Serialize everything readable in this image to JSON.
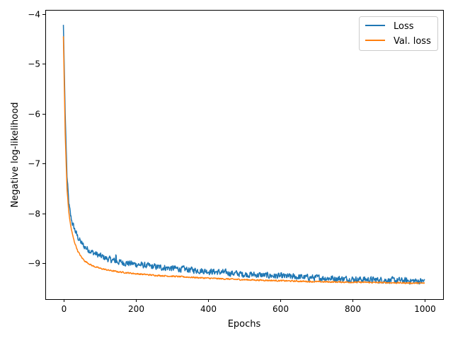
{
  "chart_data": {
    "type": "line",
    "title": "",
    "xlabel": "Epochs",
    "ylabel": "Negative log-likelihood",
    "xlim": [
      -50,
      1050
    ],
    "ylim": [
      -9.72,
      -3.92
    ],
    "xticks": [
      0,
      200,
      400,
      600,
      800,
      1000
    ],
    "xtick_labels": [
      "0",
      "200",
      "400",
      "600",
      "800",
      "1000"
    ],
    "yticks": [
      -4,
      -5,
      -6,
      -7,
      -8,
      -9
    ],
    "ytick_labels": [
      "−4",
      "−5",
      "−6",
      "−7",
      "−8",
      "−9"
    ],
    "grid": false,
    "legend_placement": "top-right",
    "n_epochs": 1000,
    "x": [
      0,
      5,
      10,
      15,
      20,
      25,
      30,
      40,
      50,
      60,
      80,
      100,
      125,
      150,
      200,
      250,
      300,
      400,
      500,
      600,
      700,
      800,
      900,
      990
    ],
    "series": [
      {
        "name": "Loss",
        "color": "#1f77b4",
        "values": [
          -4.22,
          -6.0,
          -7.25,
          -7.8,
          -8.05,
          -8.2,
          -8.3,
          -8.48,
          -8.6,
          -8.68,
          -8.78,
          -8.85,
          -8.92,
          -8.97,
          -9.02,
          -9.07,
          -9.1,
          -9.16,
          -9.22,
          -9.26,
          -9.29,
          -9.32,
          -9.34,
          -9.36
        ],
        "noise": 0.055
      },
      {
        "name": "Val. loss",
        "color": "#ff7f0e",
        "values": [
          -4.45,
          -6.4,
          -7.5,
          -7.98,
          -8.24,
          -8.42,
          -8.56,
          -8.76,
          -8.88,
          -8.96,
          -9.05,
          -9.1,
          -9.14,
          -9.17,
          -9.21,
          -9.24,
          -9.26,
          -9.3,
          -9.33,
          -9.35,
          -9.37,
          -9.38,
          -9.39,
          -9.4
        ],
        "noise": 0.012
      }
    ]
  }
}
